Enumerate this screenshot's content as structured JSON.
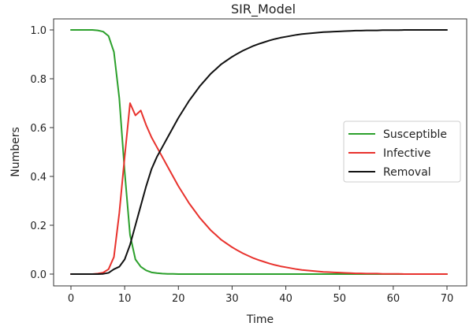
{
  "chart_data": {
    "type": "line",
    "title": "SIR_Model",
    "xlabel": "Time",
    "ylabel": "Numbers",
    "xlim": [
      0,
      70
    ],
    "ylim": [
      0,
      1
    ],
    "xticks": [
      "0",
      "10",
      "20",
      "30",
      "40",
      "50",
      "60",
      "70"
    ],
    "yticks": [
      "0.0",
      "0.2",
      "0.4",
      "0.6",
      "0.8",
      "1.0"
    ],
    "grid": false,
    "legend_position": "center-right",
    "x": [
      0,
      1,
      2,
      3,
      4,
      5,
      6,
      7,
      8,
      9,
      10,
      11,
      12,
      13,
      14,
      15,
      16,
      17,
      18,
      19,
      20,
      21,
      22,
      23,
      24,
      25,
      26,
      27,
      28,
      29,
      30,
      31,
      32,
      33,
      34,
      35,
      36,
      37,
      38,
      39,
      40,
      41,
      42,
      43,
      44,
      45,
      46,
      47,
      48,
      49,
      50,
      51,
      52,
      53,
      54,
      55,
      56,
      57,
      58,
      59,
      60,
      61,
      62,
      63,
      64,
      65,
      66,
      67,
      68,
      69,
      70
    ],
    "series": [
      {
        "name": "Susceptible",
        "color": "#2ca02c",
        "values": [
          1,
          1,
          1,
          1,
          1,
          0.998,
          0.993,
          0.975,
          0.91,
          0.72,
          0.42,
          0.16,
          0.06,
          0.03,
          0.015,
          0.007,
          0.004,
          0.002,
          0.001,
          0.001,
          0,
          0,
          0,
          0,
          0,
          0,
          0,
          0,
          0,
          0,
          0,
          0,
          0,
          0,
          0,
          0,
          0,
          0,
          0,
          0,
          0,
          0,
          0,
          0,
          0,
          0,
          0,
          0,
          0,
          0,
          0,
          0,
          0,
          0,
          0,
          0,
          0,
          0,
          0,
          0,
          0,
          0,
          0,
          0,
          0,
          0,
          0,
          0,
          0,
          0,
          0
        ]
      },
      {
        "name": "Infective",
        "color": "#e8322d",
        "values": [
          0,
          0,
          0,
          0,
          0,
          0.002,
          0.006,
          0.02,
          0.07,
          0.25,
          0.48,
          0.7,
          0.65,
          0.67,
          0.61,
          0.56,
          0.52,
          0.48,
          0.44,
          0.4,
          0.36,
          0.325,
          0.29,
          0.26,
          0.23,
          0.205,
          0.18,
          0.16,
          0.14,
          0.125,
          0.11,
          0.097,
          0.085,
          0.075,
          0.065,
          0.057,
          0.05,
          0.043,
          0.037,
          0.032,
          0.028,
          0.024,
          0.02,
          0.017,
          0.015,
          0.013,
          0.011,
          0.009,
          0.008,
          0.007,
          0.006,
          0.005,
          0.004,
          0.003,
          0.003,
          0.002,
          0.002,
          0.002,
          0.001,
          0.001,
          0.001,
          0.001,
          0,
          0,
          0,
          0,
          0,
          0,
          0,
          0,
          0
        ]
      },
      {
        "name": "Removal",
        "color": "#111111",
        "values": [
          0,
          0,
          0,
          0,
          0,
          0,
          0.001,
          0.005,
          0.02,
          0.03,
          0.06,
          0.12,
          0.2,
          0.28,
          0.36,
          0.43,
          0.48,
          0.52,
          0.56,
          0.6,
          0.64,
          0.675,
          0.71,
          0.74,
          0.77,
          0.795,
          0.82,
          0.84,
          0.86,
          0.875,
          0.89,
          0.903,
          0.915,
          0.925,
          0.935,
          0.943,
          0.95,
          0.957,
          0.963,
          0.968,
          0.972,
          0.976,
          0.98,
          0.983,
          0.985,
          0.987,
          0.989,
          0.991,
          0.992,
          0.993,
          0.994,
          0.995,
          0.996,
          0.997,
          0.997,
          0.998,
          0.998,
          0.998,
          0.999,
          0.999,
          0.999,
          0.999,
          1,
          1,
          1,
          1,
          1,
          1,
          1,
          1,
          1
        ]
      }
    ]
  }
}
